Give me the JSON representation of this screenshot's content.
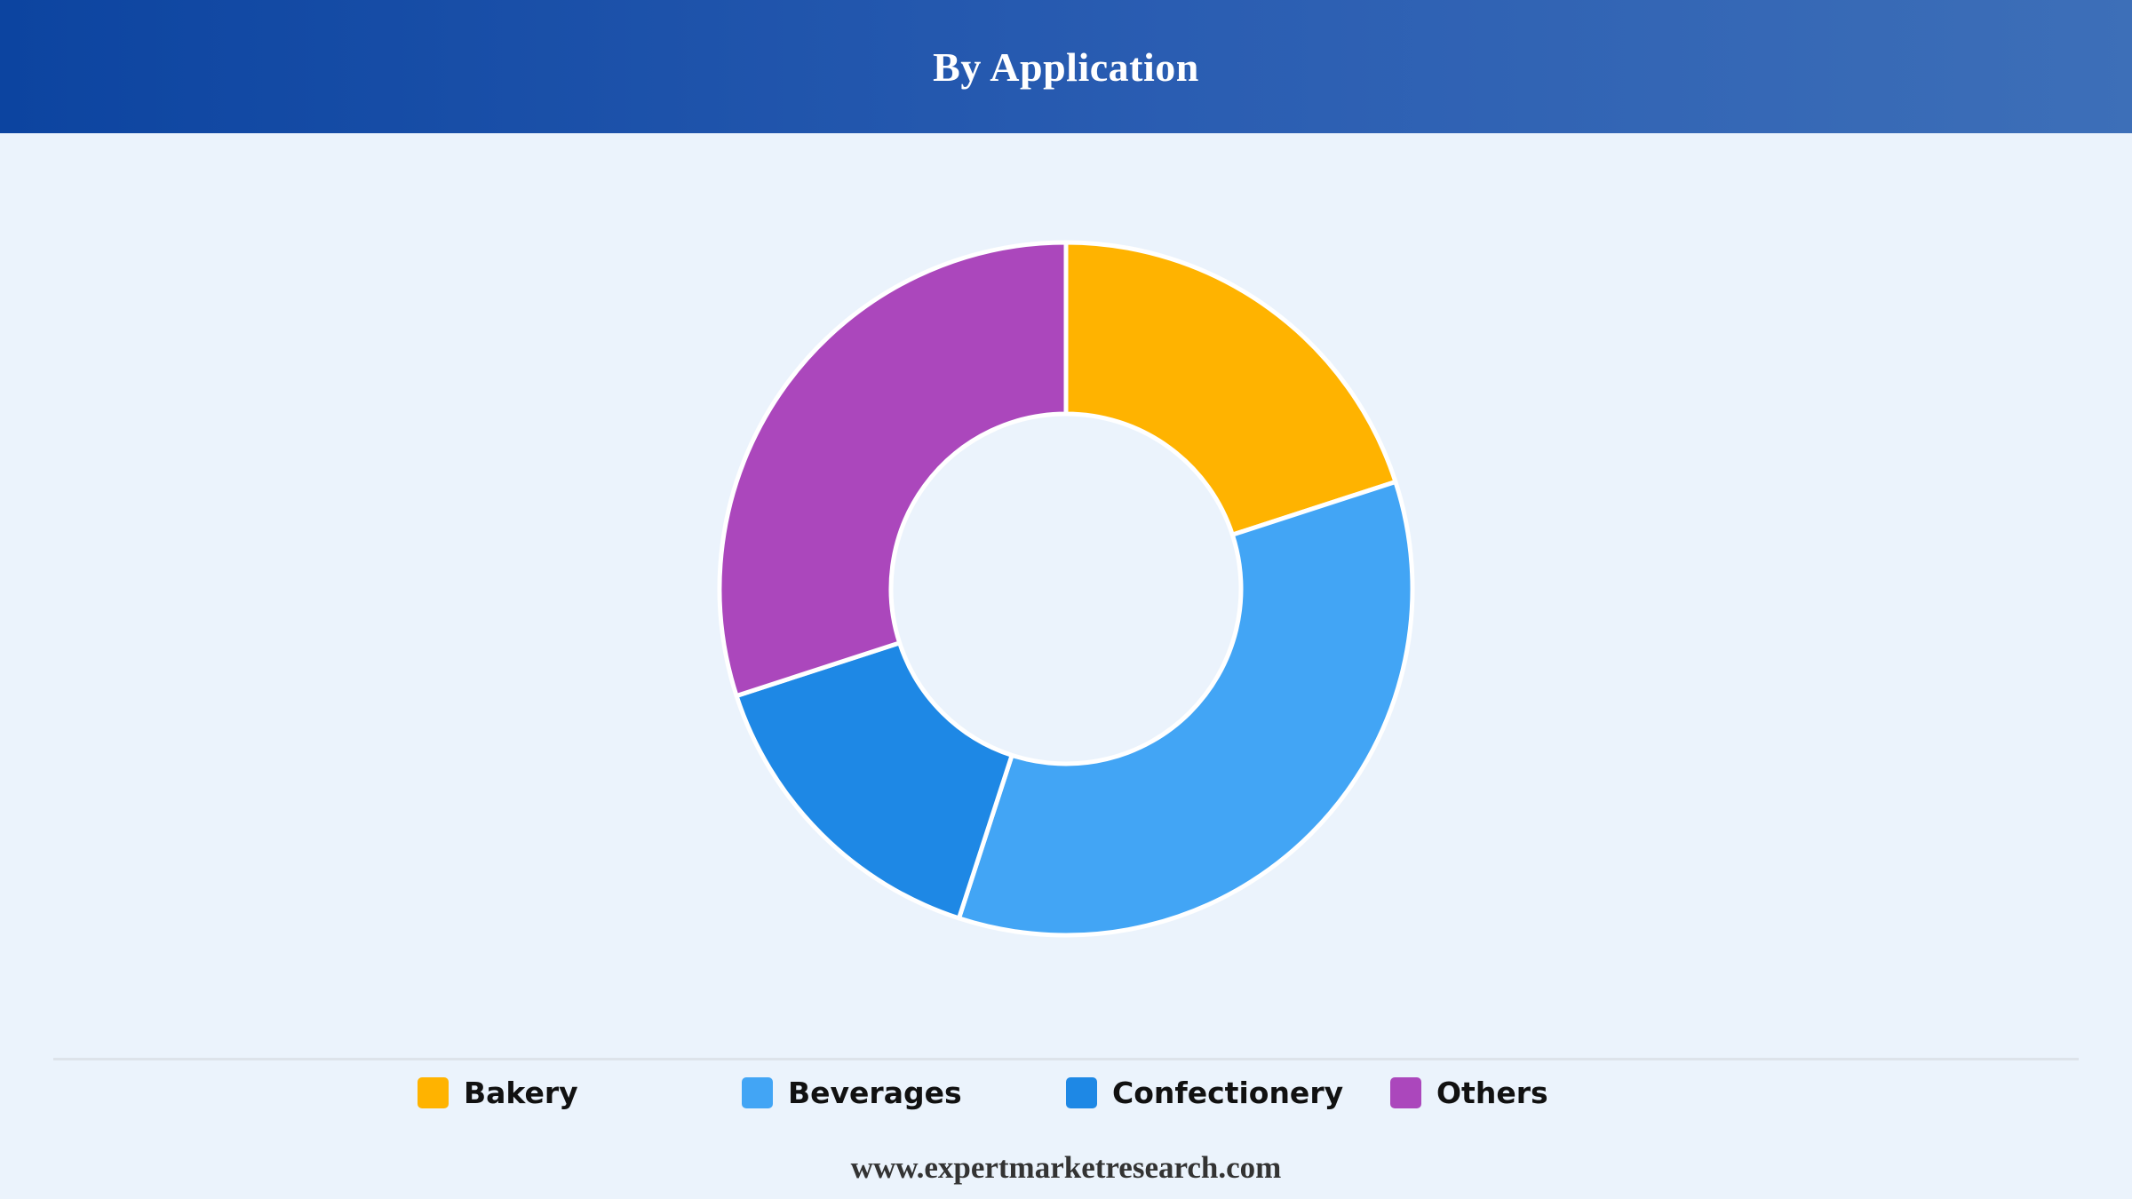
{
  "header": {
    "title": "By Application"
  },
  "chart_data": {
    "type": "pie",
    "donut": true,
    "title": "By Application",
    "categories": [
      "Bakery",
      "Beverages",
      "Confectionery",
      "Others"
    ],
    "values": [
      20,
      35,
      15,
      30
    ],
    "unit": "%",
    "colors": [
      "#ffb300",
      "#42a5f5",
      "#1e88e5",
      "#ab47bc"
    ],
    "legend_position": "bottom"
  },
  "legend": {
    "items": [
      {
        "label": "Bakery",
        "color": "#ffb300"
      },
      {
        "label": "Beverages",
        "color": "#42a5f5"
      },
      {
        "label": "Confectionery",
        "color": "#1e88e5"
      },
      {
        "label": "Others",
        "color": "#ab47bc"
      }
    ]
  },
  "footer": {
    "text": "www.expertmarketresearch.com"
  }
}
